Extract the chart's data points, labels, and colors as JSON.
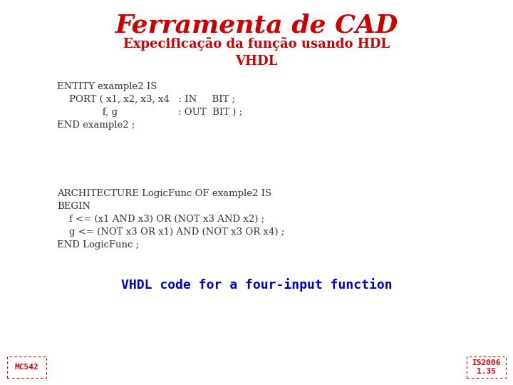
{
  "title": "Ferramenta de CAD",
  "subtitle": "Expecificação da função usando HDL\nVHDL",
  "title_color": "#cc0000",
  "subtitle_color": "#cc0000",
  "title_fontsize": 26,
  "subtitle_fontsize": 13,
  "code_lines": [
    "ENTITY example2 IS",
    "    PORT ( x1, x2, x3, x4   : IN     BIT ;",
    "               f, g                    : OUT  BIT ) ;",
    "END example2 ;"
  ],
  "code_lines2": [
    "ARCHITECTURE LogicFunc OF example2 IS",
    "BEGIN",
    "    f <= (x1 AND x3) OR (NOT x3 AND x2) ;",
    "    g <= (NOT x3 OR x1) AND (NOT x3 OR x4) ;",
    "END LogicFunc ;"
  ],
  "code_color": "#333333",
  "caption": "VHDL code for a four-input function",
  "caption_color": "#0000cc",
  "caption_fontsize": 13,
  "label_left": "MC542",
  "label_right": "IS2006\n1.35",
  "label_color": "#cc0000",
  "label_fontsize": 8,
  "bg_color": "#ffffff",
  "code_fontsize": 9.5
}
